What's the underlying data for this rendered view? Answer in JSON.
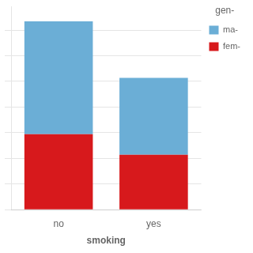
{
  "chart_data": {
    "type": "bar",
    "stacked": true,
    "categories": [
      "no",
      "yes"
    ],
    "series": [
      {
        "name": "fem-",
        "color": "#d7191c",
        "values": [
          147,
          107
        ]
      },
      {
        "name": "ma-",
        "color": "#6baed6",
        "values": [
          220,
          150
        ]
      }
    ],
    "xlabel": "smoking",
    "legend_title": "gen-",
    "legend": "upper right",
    "ylim": [
      0,
      396.36
    ],
    "yticks": [
      0,
      50,
      100,
      150,
      200,
      250,
      300,
      350
    ],
    "grid": true,
    "tick_labels": "x"
  }
}
